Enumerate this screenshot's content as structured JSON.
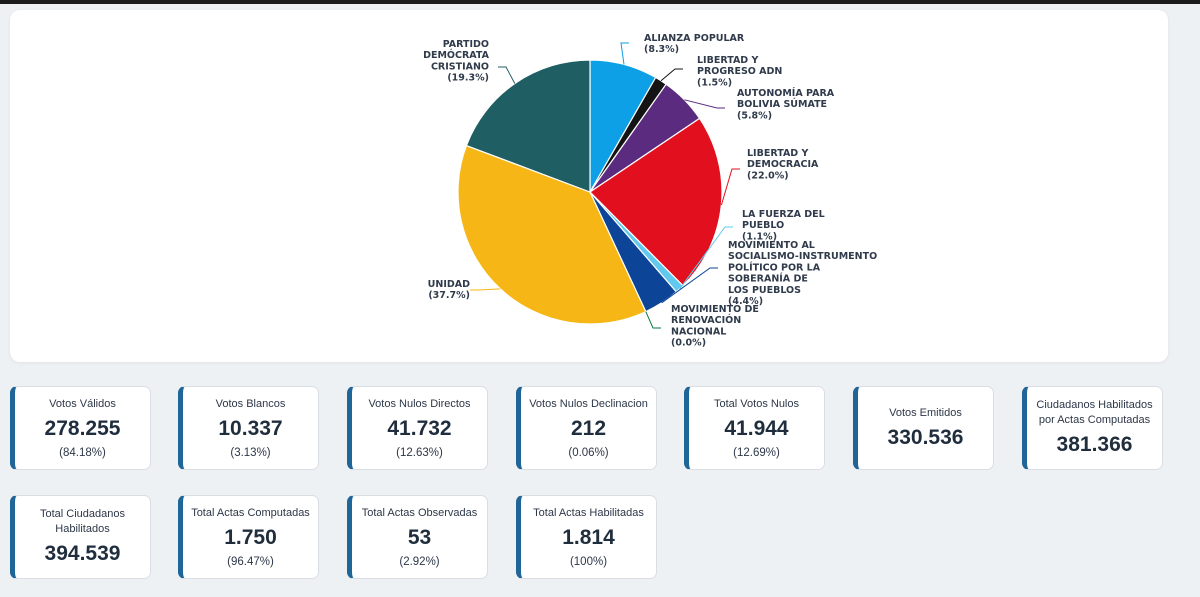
{
  "chart_data": {
    "type": "pie",
    "slices": [
      {
        "name": "ALIANZA POPULAR",
        "label_lines": [
          "ALIANZA POPULAR"
        ],
        "pct": "(8.3%)",
        "value": 8.3,
        "color": "#0ea0e6"
      },
      {
        "name": "LIBERTAD Y PROGRESO ADN",
        "label_lines": [
          "LIBERTAD Y",
          "PROGRESO ADN"
        ],
        "pct": "(1.5%)",
        "value": 1.5,
        "color": "#141414"
      },
      {
        "name": "AUTONOMÍA PARA BOLIVIA SUMATE",
        "label_lines": [
          "AUTONOMÍA PARA",
          "BOLIVIA SÚMATE"
        ],
        "pct": "(5.8%)",
        "value": 5.8,
        "color": "#5b2b7f"
      },
      {
        "name": "LIBERTAD Y DEMOCRACIA",
        "label_lines": [
          "LIBERTAD Y",
          "DEMOCRACIA"
        ],
        "pct": "(22.0%)",
        "value": 22.0,
        "color": "#e2101e"
      },
      {
        "name": "LA FUERZA DEL PUEBLO",
        "label_lines": [
          "LA FUERZA DEL",
          "PUEBLO"
        ],
        "pct": "(1.1%)",
        "value": 1.1,
        "color": "#62c9ee"
      },
      {
        "name": "MOVIMIENTO AL SOCIALISMO-INSTRUMENTO POLÍTICO POR LA SOBERANÍA DE LOS PUEBLOS",
        "label_lines": [
          "MOVIMIENTO AL",
          "SOCIALISMO-INSTRUMENTO",
          "POLÍTICO POR LA",
          "SOBERANÍA DE",
          "LOS PUEBLOS"
        ],
        "pct": "(4.4%)",
        "value": 4.4,
        "color": "#0c4597"
      },
      {
        "name": "MOVIMIENTO DE RENOVACIÓN NACIONAL",
        "label_lines": [
          "MOVIMIENTO DE",
          "RENOVACIÓN",
          "NACIONAL"
        ],
        "pct": "(0.0%)",
        "value": 0.0,
        "color": "#0b7a3b"
      },
      {
        "name": "UNIDAD",
        "label_lines": [
          "UNIDAD"
        ],
        "pct": "(37.7%)",
        "value": 37.7,
        "color": "#f6b716"
      },
      {
        "name": "PARTIDO DEMÓCRATA CRISTIANO",
        "label_lines": [
          "PARTIDO",
          "DEMÓCRATA",
          "CRISTIANO"
        ],
        "pct": "(19.3%)",
        "value": 19.3,
        "color": "#1f5e62"
      }
    ]
  },
  "stats": [
    {
      "label": "Votos Válidos",
      "value": "278.255",
      "pct": "(84.18%)"
    },
    {
      "label": "Votos Blancos",
      "value": "10.337",
      "pct": "(3.13%)"
    },
    {
      "label": "Votos Nulos Directos",
      "value": "41.732",
      "pct": "(12.63%)"
    },
    {
      "label": "Votos Nulos Declinacion",
      "value": "212",
      "pct": "(0.06%)"
    },
    {
      "label": "Total Votos Nulos",
      "value": "41.944",
      "pct": "(12.69%)"
    },
    {
      "label": "Votos Emitidos",
      "value": "330.536"
    },
    {
      "label": "Ciudadanos Habilitados por Actas Computadas",
      "value": "381.366"
    },
    {
      "label": "Total Ciudadanos Habilitados",
      "value": "394.539"
    },
    {
      "label": "Total Actas Computadas",
      "value": "1.750",
      "pct": "(96.47%)"
    },
    {
      "label": "Total Actas Observadas",
      "value": "53",
      "pct": "(2.92%)"
    },
    {
      "label": "Total Actas Habilitadas",
      "value": "1.814",
      "pct": "(100%)"
    }
  ]
}
